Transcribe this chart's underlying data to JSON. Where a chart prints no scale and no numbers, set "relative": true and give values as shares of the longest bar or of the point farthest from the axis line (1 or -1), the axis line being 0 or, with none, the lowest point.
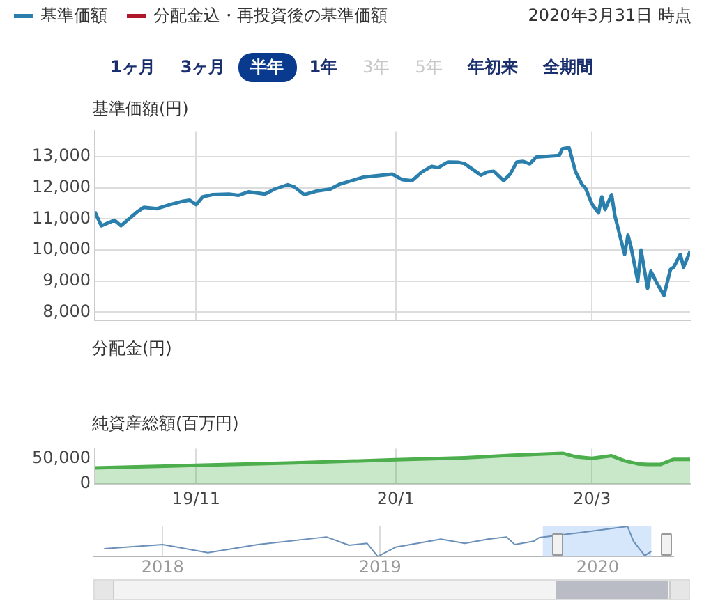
{
  "chart_data": [
    {
      "type": "line",
      "ylabel": "基準価額(円)",
      "legend": "top left",
      "annotations": [
        "2020年3月31日 時点",
        "1ヶ月",
        "3ヶ月",
        "半年",
        "1年",
        "3年",
        "5年",
        "年初来",
        "全期間"
      ],
      "x": [
        "2019-10-01",
        "2019-10-03",
        "2019-10-07",
        "2019-10-09",
        "2019-10-14",
        "2019-10-16",
        "2019-10-20",
        "2019-10-24",
        "2019-10-28",
        "2019-10-30",
        "2019-11-01",
        "2019-11-03",
        "2019-11-06",
        "2019-11-11",
        "2019-11-14",
        "2019-11-17",
        "2019-11-22",
        "2019-11-25",
        "2019-11-29",
        "2019-12-01",
        "2019-12-04",
        "2019-12-08",
        "2019-12-12",
        "2019-12-15",
        "2019-12-22",
        "2019-12-28",
        "2019-12-31",
        "2020-01-03",
        "2020-01-06",
        "2020-01-09",
        "2020-01-12",
        "2020-01-14",
        "2020-01-17",
        "2020-01-20",
        "2020-01-22",
        "2020-01-27",
        "2020-01-29",
        "2020-01-31",
        "2020-02-03",
        "2020-02-05",
        "2020-02-07",
        "2020-02-09",
        "2020-02-11",
        "2020-02-13",
        "2020-02-20",
        "2020-02-21",
        "2020-02-23",
        "2020-02-25",
        "2020-02-27",
        "2020-02-28",
        "2020-03-01",
        "2020-03-03",
        "2020-03-04",
        "2020-03-05",
        "2020-03-07",
        "2020-03-08",
        "2020-03-11",
        "2020-03-12",
        "2020-03-13",
        "2020-03-15",
        "2020-03-16",
        "2020-03-18",
        "2020-03-19",
        "2020-03-21",
        "2020-03-23",
        "2020-03-25",
        "2020-03-26",
        "2020-03-28",
        "2020-03-29",
        "2020-03-31"
      ],
      "series": [
        {
          "name": "基準価額",
          "color": "#2a7fad",
          "values": [
            11230,
            10780,
            10960,
            10780,
            11230,
            11370,
            11330,
            11460,
            11570,
            11600,
            11460,
            11710,
            11780,
            11800,
            11760,
            11870,
            11800,
            11960,
            12100,
            12030,
            11780,
            11900,
            11960,
            12120,
            12340,
            12410,
            12440,
            12260,
            12230,
            12510,
            12690,
            12650,
            12830,
            12820,
            12780,
            12410,
            12510,
            12530,
            12230,
            12440,
            12830,
            12850,
            12770,
            12990,
            13040,
            13260,
            13290,
            12510,
            12100,
            12000,
            11480,
            11190,
            11710,
            11300,
            11780,
            11100,
            9860,
            10480,
            10070,
            9000,
            10000,
            8770,
            9320,
            8910,
            8540,
            9380,
            9450,
            9860,
            9450,
            9950
          ]
        },
        {
          "name": "分配金込・再投資後の基準価額",
          "color": "#b0182a",
          "values": [
            null,
            null,
            null,
            null,
            null,
            null,
            null,
            null,
            null,
            null,
            null,
            null,
            null,
            null,
            null,
            null,
            null,
            null,
            null,
            null,
            null,
            null,
            null,
            null,
            null,
            null,
            null,
            null,
            null,
            null,
            null,
            null,
            null,
            null,
            null,
            null,
            null,
            null,
            null,
            null,
            null,
            null,
            null,
            null,
            null,
            null,
            null,
            null,
            null,
            null,
            null,
            null,
            null,
            null,
            null,
            null,
            null,
            null,
            null,
            null,
            null,
            null,
            null,
            null,
            null,
            null,
            null,
            null,
            null,
            null
          ]
        }
      ],
      "xlim": [
        "2019-10-01",
        "2020-03-31"
      ],
      "xticks": [
        {
          "value": "2019-11-01",
          "label": null
        },
        {
          "value": "2020-01-01",
          "label": null
        },
        {
          "value": "2020-03-01",
          "label": null
        }
      ],
      "ylim": [
        7750,
        13820
      ],
      "yticks": [
        {
          "value": 8000,
          "label": "8,000"
        },
        {
          "value": 9000,
          "label": "9,000"
        },
        {
          "value": 10000,
          "label": "10,000"
        },
        {
          "value": 11000,
          "label": "11,000"
        },
        {
          "value": 12000,
          "label": "12,000"
        },
        {
          "value": 13000,
          "label": "13,000"
        }
      ],
      "grid": true,
      "tick_labels": "y"
    },
    {
      "type": "other",
      "ylabel": "分配金(円)"
    },
    {
      "type": "area",
      "ylabel": "純資産総額(百万円)",
      "color": "#4cae4c",
      "x": [
        "2019-10-01",
        "2019-11-01",
        "2019-12-01",
        "2020-01-01",
        "2020-01-22",
        "2020-02-06",
        "2020-02-21",
        "2020-02-25",
        "2020-03-01",
        "2020-03-07",
        "2020-03-11",
        "2020-03-15",
        "2020-03-18",
        "2020-03-22",
        "2020-03-26",
        "2020-03-31"
      ],
      "values": [
        32000,
        37000,
        42000,
        48000,
        52000,
        57000,
        61000,
        54000,
        51000,
        56000,
        46000,
        40000,
        39000,
        39000,
        49000,
        49000
      ],
      "xlim": [
        "2019-10-01",
        "2020-03-31"
      ],
      "xticks": [
        {
          "value": "2019-11-01",
          "label": "19/11"
        },
        {
          "value": "2020-01-01",
          "label": "20/1"
        },
        {
          "value": "2020-03-01",
          "label": "20/3"
        }
      ],
      "ylim": [
        0,
        70000
      ],
      "yticks": [
        {
          "value": 0,
          "label": "0"
        },
        {
          "value": 50000,
          "label": "50,000"
        }
      ],
      "grid": "x"
    },
    {
      "type": "line",
      "relative": true,
      "color": "#6a8fb8",
      "x": [
        "2017-09-25",
        "2018-01-01",
        "2018-03-18",
        "2018-06-10",
        "2018-10-03",
        "2018-11-10",
        "2018-12-10",
        "2018-12-28",
        "2019-01-27",
        "2019-04-13",
        "2019-05-23",
        "2019-07-01",
        "2019-08-01",
        "2019-08-15",
        "2019-09-16",
        "2019-09-25",
        "2019-12-02",
        "2020-02-20",
        "2020-03-01",
        "2020-03-20",
        "2020-03-31"
      ],
      "values": [
        0.26,
        0.4,
        0.125,
        0.4,
        0.65,
        0.375,
        0.44,
        0,
        0.31,
        0.58,
        0.44,
        0.58,
        0.65,
        0.4,
        0.51,
        0.63,
        0.79,
        1,
        0.51,
        0.03,
        0.17
      ],
      "xlim": [
        "2017-09-07",
        "2020-05-07"
      ],
      "xticks": [
        {
          "value": "2018-01-01",
          "label": "2018"
        },
        {
          "value": "2019-01-01",
          "label": "2019"
        },
        {
          "value": "2020-01-01",
          "label": "2020"
        }
      ],
      "bands": [
        {
          "axis": "x",
          "from": "2019-10-01",
          "to": "2020-03-31",
          "color": "#d6e6fb"
        }
      ],
      "grid": "x",
      "tick_labels": "x"
    }
  ]
}
